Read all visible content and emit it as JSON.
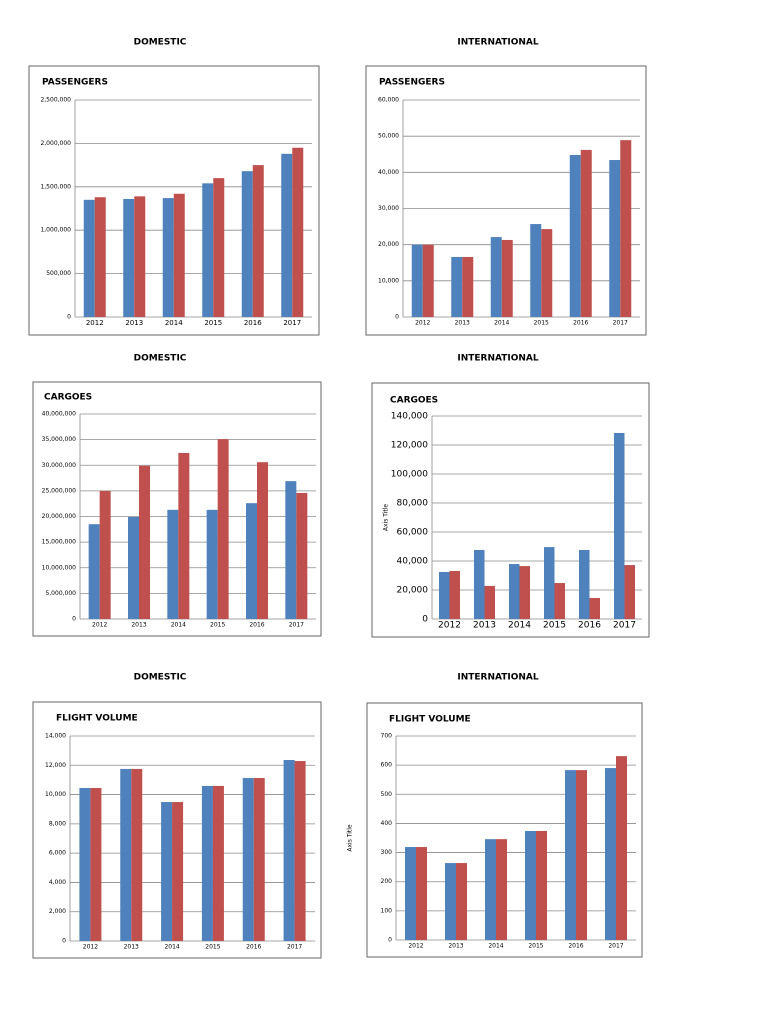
{
  "chart_data": [
    {
      "type": "bar",
      "heading": "DOMESTIC",
      "title": "PASSENGERS",
      "categories": [
        "2012",
        "2013",
        "2014",
        "2015",
        "2016",
        "2017"
      ],
      "series": [
        {
          "color": "#4f81bd",
          "values": [
            1350000,
            1360000,
            1370000,
            1540000,
            1680000,
            1880000
          ]
        },
        {
          "color": "#c0504d",
          "values": [
            1380000,
            1390000,
            1420000,
            1600000,
            1750000,
            1950000
          ]
        }
      ],
      "ylim": [
        0,
        2500000
      ],
      "yticks": [
        0,
        {
          "value": 500000,
          "label": "500,000"
        },
        {
          "value": 1000000,
          "label": "1,000,000"
        },
        {
          "value": 1500000,
          "label": "1,500,000"
        },
        {
          "value": 2000000,
          "label": "2,000,000"
        },
        {
          "value": 2500000,
          "label": "2,500,000"
        }
      ],
      "grid": true
    },
    {
      "type": "bar",
      "heading": "INTERNATIONAL",
      "title": "PASSENGERS",
      "categories": [
        "2012",
        "2013",
        "2014",
        "2015",
        "2016",
        "2017"
      ],
      "series": [
        {
          "color": "#4f81bd",
          "values": [
            20000,
            16600,
            22100,
            25700,
            44800,
            43400
          ]
        },
        {
          "color": "#c0504d",
          "values": [
            20000,
            16600,
            21300,
            24300,
            46200,
            48900
          ]
        }
      ],
      "ylim": [
        0,
        60000
      ],
      "yticks": [
        0,
        {
          "value": 10000,
          "label": "10,000"
        },
        {
          "value": 20000,
          "label": "20,000"
        },
        {
          "value": 30000,
          "label": "30,000"
        },
        {
          "value": 40000,
          "label": "40,000"
        },
        {
          "value": 50000,
          "label": "50,000"
        },
        {
          "value": 60000,
          "label": "60,000"
        }
      ],
      "grid": true
    },
    {
      "type": "bar",
      "heading": "DOMESTIC",
      "title": "CARGOES",
      "categories": [
        "2012",
        "2013",
        "2014",
        "2015",
        "2016",
        "2017"
      ],
      "series": [
        {
          "color": "#4f81bd",
          "values": [
            18500000,
            19900000,
            21300000,
            21300000,
            22600000,
            26900000
          ]
        },
        {
          "color": "#c0504d",
          "values": [
            25000000,
            29900000,
            32400000,
            35100000,
            30600000,
            24600000
          ]
        }
      ],
      "ylim": [
        0,
        40000000
      ],
      "yticks": [
        0,
        {
          "value": 5000000,
          "label": "5,000,000"
        },
        {
          "value": 10000000,
          "label": "10,000,000"
        },
        {
          "value": 15000000,
          "label": "15,000,000"
        },
        {
          "value": 20000000,
          "label": "20,000,000"
        },
        {
          "value": 25000000,
          "label": "25,000,000"
        },
        {
          "value": 30000000,
          "label": "30,000,000"
        },
        {
          "value": 35000000,
          "label": "35,000,000"
        },
        {
          "value": 40000000,
          "label": "40,000,000"
        }
      ],
      "grid": true
    },
    {
      "type": "bar",
      "heading": "INTERNATIONAL",
      "title": "CARGOES",
      "y_axis_title": "Axis Title",
      "categories": [
        "2012",
        "2013",
        "2014",
        "2015",
        "2016",
        "2017"
      ],
      "series": [
        {
          "color": "#4f81bd",
          "values": [
            32400,
            47600,
            37900,
            49600,
            47600,
            128300
          ]
        },
        {
          "color": "#c0504d",
          "values": [
            33100,
            22800,
            36500,
            24800,
            14500,
            37200
          ]
        }
      ],
      "ylim": [
        0,
        140000
      ],
      "yticks": [
        0,
        {
          "value": 20000,
          "label": "20,000"
        },
        {
          "value": 40000,
          "label": "40,000"
        },
        {
          "value": 60000,
          "label": "60,000"
        },
        {
          "value": 80000,
          "label": "80,000"
        },
        {
          "value": 100000,
          "label": "100,000"
        },
        {
          "value": 120000,
          "label": "120,000"
        },
        {
          "value": 140000,
          "label": "140,000"
        }
      ],
      "grid": true
    },
    {
      "type": "bar",
      "heading": "DOMESTIC",
      "title": "FLIGHT VOLUME",
      "categories": [
        "2012",
        "2013",
        "2014",
        "2015",
        "2016",
        "2017"
      ],
      "series": [
        {
          "color": "#4f81bd",
          "values": [
            10450,
            11750,
            9490,
            10590,
            11130,
            12360
          ]
        },
        {
          "color": "#c0504d",
          "values": [
            10450,
            11750,
            9490,
            10590,
            11130,
            12290
          ]
        }
      ],
      "ylim": [
        0,
        14000
      ],
      "yticks": [
        0,
        {
          "value": 2000,
          "label": "2,000"
        },
        {
          "value": 4000,
          "label": "4,000"
        },
        {
          "value": 6000,
          "label": "6,000"
        },
        {
          "value": 8000,
          "label": "8,000"
        },
        {
          "value": 10000,
          "label": "10,000"
        },
        {
          "value": 12000,
          "label": "12,000"
        },
        {
          "value": 14000,
          "label": "14,000"
        }
      ],
      "grid": true
    },
    {
      "type": "bar",
      "heading": "INTERNATIONAL",
      "title": "FLIGHT VOLUME",
      "y_axis_title": "Axis Title",
      "categories": [
        "2012",
        "2013",
        "2014",
        "2015",
        "2016",
        "2017"
      ],
      "series": [
        {
          "color": "#4f81bd",
          "values": [
            319,
            264,
            346,
            374,
            583,
            590
          ]
        },
        {
          "color": "#c0504d",
          "values": [
            319,
            264,
            346,
            374,
            583,
            631
          ]
        }
      ],
      "ylim": [
        0,
        700
      ],
      "yticks": [
        0,
        100,
        200,
        300,
        400,
        500,
        600,
        700
      ],
      "grid": true
    }
  ]
}
